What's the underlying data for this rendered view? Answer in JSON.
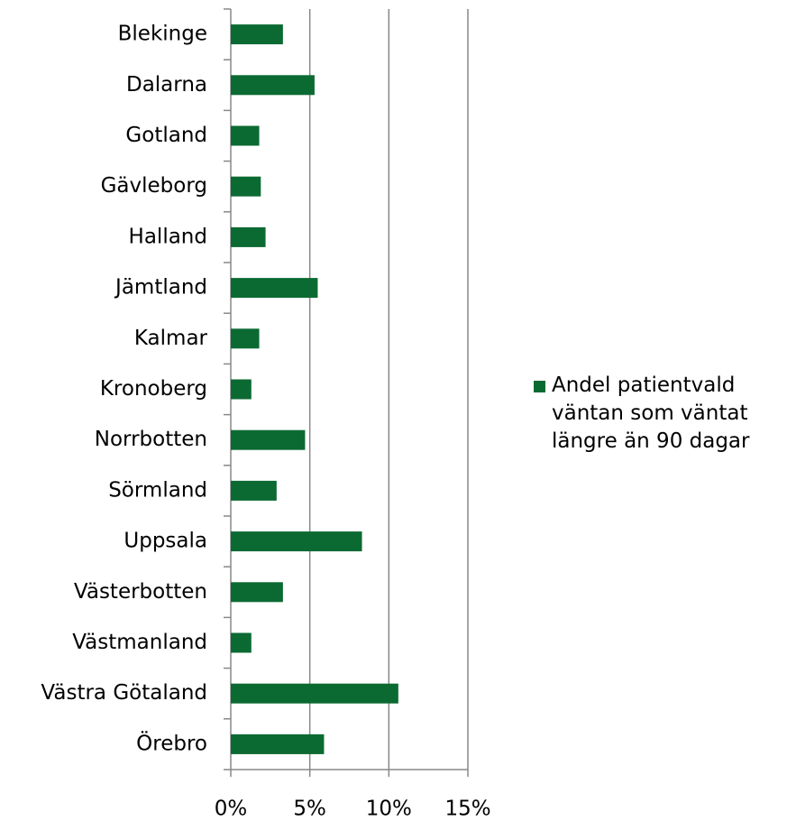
{
  "chart_data": {
    "type": "barh",
    "categories": [
      "Blekinge",
      "Dalarna",
      "Gotland",
      "Gävleborg",
      "Halland",
      "Jämtland",
      "Kalmar",
      "Kronoberg",
      "Norrbotten",
      "Sörmland",
      "Uppsala",
      "Västerbotten",
      "Västmanland",
      "Västra Götaland",
      "Örebro"
    ],
    "series": [
      {
        "name": "Andel patientvald väntan som väntat längre än 90 dagar",
        "color": "#0b6a32",
        "values": [
          3.3,
          5.3,
          1.8,
          1.9,
          2.2,
          5.5,
          1.8,
          1.3,
          4.7,
          2.9,
          8.3,
          3.3,
          1.3,
          10.6,
          5.9
        ]
      }
    ],
    "xlim": [
      0,
      15
    ],
    "xticks": [
      {
        "value": 0,
        "label": "0%"
      },
      {
        "value": 5,
        "label": "5%"
      },
      {
        "value": 10,
        "label": "10%"
      },
      {
        "value": 15,
        "label": "15%"
      }
    ],
    "grid": true,
    "legend": "right"
  }
}
